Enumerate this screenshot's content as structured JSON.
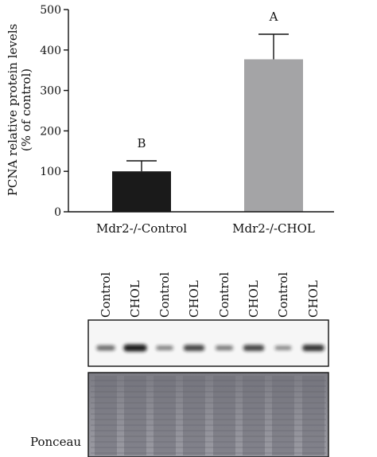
{
  "chart_data": {
    "type": "bar",
    "categories": [
      "Mdr2-/-Control",
      "Mdr2-/-CHOL"
    ],
    "values": [
      100,
      377
    ],
    "errors": [
      26,
      62
    ],
    "significance_letters": [
      "B",
      "A"
    ],
    "ylabel_line1": "PCNA relative protein levels",
    "ylabel_line2": "(% of control)",
    "ylim": [
      0,
      500
    ],
    "yticks": [
      "0",
      "100",
      "200",
      "300",
      "400",
      "500"
    ],
    "ytick_values": [
      0,
      100,
      200,
      300,
      400,
      500
    ],
    "bar_colors": [
      "#1a1a1a",
      "#a4a4a6"
    ],
    "grid": false
  },
  "blot": {
    "lane_labels": [
      "Control",
      "CHOL",
      "Control",
      "CHOL",
      "Control",
      "CHOL",
      "Control",
      "CHOL"
    ],
    "band_intensity": [
      0.45,
      0.95,
      0.3,
      0.7,
      0.35,
      0.7,
      0.25,
      0.8
    ],
    "ponceau_label": "Ponceau"
  },
  "colors": {
    "ink": "#111111",
    "bar_control": "#1a1a1a",
    "bar_chol": "#a4a4a6",
    "band": "#141414",
    "ponceau_bg": "#8a8a90"
  }
}
